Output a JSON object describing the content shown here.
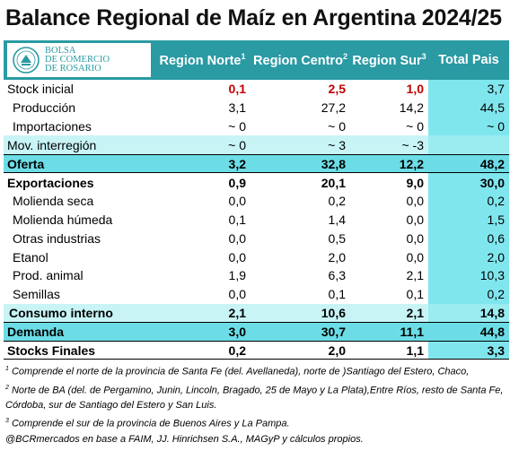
{
  "title": "Balance Regional de Maíz en Argentina 2024/25",
  "logo": {
    "line1": "BOLSA",
    "line2": "DE COMERCIO",
    "line3": "DE ROSARIO"
  },
  "headers": {
    "norte": "Region Norte",
    "norte_sup": "1",
    "centro": "Region Centro",
    "centro_sup": "2",
    "sur": "Region Sur",
    "sur_sup": "3",
    "total": "Total Pais"
  },
  "rows": [
    {
      "label": "Stock inicial",
      "norte": "0,1",
      "centro": "2,5",
      "sur": "1,0",
      "total": "3,7"
    },
    {
      "label": "Producción",
      "norte": "3,1",
      "centro": "27,2",
      "sur": "14,2",
      "total": "44,5"
    },
    {
      "label": "Importaciones",
      "norte": "~ 0",
      "centro": "~ 0",
      "sur": "~ 0",
      "total": "~ 0"
    },
    {
      "label": "Mov. interregión",
      "norte": "~ 0",
      "centro": "~ 3",
      "sur": "~ -3",
      "total": ""
    },
    {
      "label": "Oferta",
      "norte": "3,2",
      "centro": "32,8",
      "sur": "12,2",
      "total": "48,2"
    },
    {
      "label": "Exportaciones",
      "norte": "0,9",
      "centro": "20,1",
      "sur": "9,0",
      "total": "30,0"
    },
    {
      "label": "Molienda seca",
      "norte": "0,0",
      "centro": "0,2",
      "sur": "0,0",
      "total": "0,2"
    },
    {
      "label": "Molienda húmeda",
      "norte": "0,1",
      "centro": "1,4",
      "sur": "0,0",
      "total": "1,5"
    },
    {
      "label": "Otras industrias",
      "norte": "0,0",
      "centro": "0,5",
      "sur": "0,0",
      "total": "0,6"
    },
    {
      "label": "Etanol",
      "norte": "0,0",
      "centro": "2,0",
      "sur": "0,0",
      "total": "2,0"
    },
    {
      "label": "Prod. animal",
      "norte": "1,9",
      "centro": "6,3",
      "sur": "2,1",
      "total": "10,3"
    },
    {
      "label": "Semillas",
      "norte": "0,0",
      "centro": "0,1",
      "sur": "0,1",
      "total": "0,2"
    },
    {
      "label": "Consumo interno",
      "norte": "2,1",
      "centro": "10,6",
      "sur": "2,1",
      "total": "14,8"
    },
    {
      "label": "Demanda",
      "norte": "3,0",
      "centro": "30,7",
      "sur": "11,1",
      "total": "44,8"
    },
    {
      "label": "Stocks Finales",
      "norte": "0,2",
      "centro": "2,0",
      "sur": "1,1",
      "total": "3,3"
    }
  ],
  "notes": {
    "n1_sup": "1",
    "n1": "Comprende el norte de la provincia de Santa Fe (del. Avellaneda), norte de )Santiago del Estero, Chaco,",
    "n2_sup": "2",
    "n2a": "Norte de BA (del. de Pergamino, Junin, Lincoln, Bragado, 25 de Mayo y La Plata),Entre Ríos, resto de Santa Fe,",
    "n2b": "Córdoba, sur de Santiago del Estero y San Luis.",
    "n3_sup": "3",
    "n3": "Comprende el sur de la provincia de Buenos Aires y La Pampa.",
    "source": "@BCRmercados en base a FAIM, JJ. Hinrichsen S.A., MAGyP y cálculos propios."
  },
  "colors": {
    "header": "#2a9aa3",
    "light_row": "#c8f4f6",
    "bold_row": "#6cdde6",
    "total_col": "#80e6ee",
    "red": "#c00000"
  }
}
